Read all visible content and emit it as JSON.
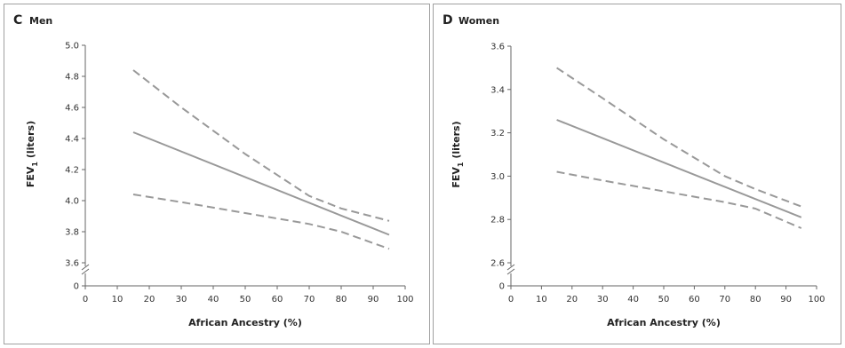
{
  "chart_data": [
    {
      "type": "line",
      "panel_letter": "C",
      "title": "Men",
      "xlabel": "African Ancestry (%)",
      "ylabel": "FEV",
      "ylabel_sub": "1",
      "ylabel_unit": "(liters)",
      "xlim": [
        0,
        100
      ],
      "ylim": [
        3.6,
        5.0
      ],
      "x_ticks": [
        0,
        10,
        20,
        30,
        40,
        50,
        60,
        70,
        80,
        90,
        100
      ],
      "x_tick_labels": [
        "0",
        "10",
        "20",
        "30",
        "40",
        "50",
        "60",
        "70",
        "80",
        "90",
        "100"
      ],
      "y_ticks": [
        3.6,
        3.8,
        4.0,
        4.2,
        4.4,
        4.6,
        4.8,
        5.0
      ],
      "y_tick_labels": [
        "3.6",
        "3.8",
        "4.0",
        "4.2",
        "4.4",
        "4.6",
        "4.8",
        "5.0"
      ],
      "y_zero_label": "0",
      "axis_break": true,
      "grid": false,
      "series": [
        {
          "role": "estimate",
          "style": "solid",
          "x": [
            15,
            95
          ],
          "y": [
            4.44,
            3.78
          ]
        },
        {
          "role": "upper-ci",
          "style": "dashed",
          "x": [
            15,
            30,
            50,
            70,
            80,
            95
          ],
          "y": [
            4.84,
            4.6,
            4.3,
            4.03,
            3.95,
            3.87
          ]
        },
        {
          "role": "lower-ci",
          "style": "dashed",
          "x": [
            15,
            30,
            50,
            70,
            80,
            95
          ],
          "y": [
            4.04,
            3.99,
            3.92,
            3.85,
            3.8,
            3.69
          ]
        }
      ],
      "colors": {
        "estimate": "#999999",
        "ci": "#999999"
      }
    },
    {
      "type": "line",
      "panel_letter": "D",
      "title": "Women",
      "xlabel": "African Ancestry (%)",
      "ylabel": "FEV",
      "ylabel_sub": "1",
      "ylabel_unit": "(liters)",
      "xlim": [
        0,
        100
      ],
      "ylim": [
        2.6,
        3.6
      ],
      "x_ticks": [
        0,
        10,
        20,
        30,
        40,
        50,
        60,
        70,
        80,
        90,
        100
      ],
      "x_tick_labels": [
        "0",
        "10",
        "20",
        "30",
        "40",
        "50",
        "60",
        "70",
        "80",
        "90",
        "100"
      ],
      "y_ticks": [
        2.6,
        2.8,
        3.0,
        3.2,
        3.4,
        3.6
      ],
      "y_tick_labels": [
        "2.6",
        "2.8",
        "3.0",
        "3.2",
        "3.4",
        "3.6"
      ],
      "y_zero_label": "0",
      "axis_break": true,
      "grid": false,
      "series": [
        {
          "role": "estimate",
          "style": "solid",
          "x": [
            15,
            95
          ],
          "y": [
            3.26,
            2.81
          ]
        },
        {
          "role": "upper-ci",
          "style": "dashed",
          "x": [
            15,
            30,
            50,
            70,
            80,
            95
          ],
          "y": [
            3.5,
            3.36,
            3.17,
            3.0,
            2.94,
            2.86
          ]
        },
        {
          "role": "lower-ci",
          "style": "dashed",
          "x": [
            15,
            30,
            50,
            70,
            80,
            95
          ],
          "y": [
            3.02,
            2.98,
            2.93,
            2.88,
            2.85,
            2.76
          ]
        }
      ],
      "colors": {
        "estimate": "#999999",
        "ci": "#999999"
      }
    }
  ]
}
